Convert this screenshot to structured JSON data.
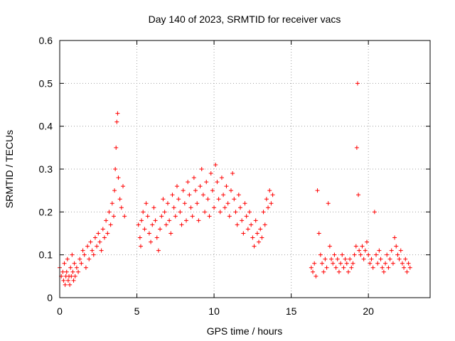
{
  "chart_data": {
    "type": "scatter",
    "title": "Day 140 of 2023, SRMTID for receiver vacs",
    "xlabel": "GPS time / hours",
    "ylabel": "SRMTID / TECUs",
    "xlim": [
      0,
      24
    ],
    "ylim": [
      0,
      0.6
    ],
    "xticks": [
      0,
      5,
      10,
      15,
      20
    ],
    "xtick_labels": [
      "0",
      "5",
      "10",
      "15",
      "20"
    ],
    "yticks": [
      0,
      0.1,
      0.2,
      0.3,
      0.4,
      0.5,
      0.6
    ],
    "ytick_labels": [
      "0",
      "0.1",
      "0.2",
      "0.3",
      "0.4",
      "0.5",
      "0.6"
    ],
    "grid": true,
    "marker": "+",
    "color": "#ff0000",
    "series": [
      {
        "name": "vacs",
        "x": [
          0.0,
          0.1,
          0.2,
          0.25,
          0.3,
          0.35,
          0.4,
          0.45,
          0.5,
          0.55,
          0.6,
          0.65,
          0.7,
          0.75,
          0.8,
          0.85,
          0.9,
          0.95,
          1.0,
          1.1,
          1.2,
          1.3,
          1.4,
          1.5,
          1.6,
          1.7,
          1.8,
          1.9,
          2.0,
          2.1,
          2.2,
          2.3,
          2.4,
          2.5,
          2.6,
          2.7,
          2.8,
          2.9,
          3.0,
          3.1,
          3.2,
          3.3,
          3.4,
          3.5,
          3.55,
          3.6,
          3.65,
          3.7,
          3.75,
          3.8,
          3.9,
          4.0,
          4.1,
          4.2,
          5.1,
          5.2,
          5.25,
          5.3,
          5.4,
          5.5,
          5.6,
          5.7,
          5.8,
          5.9,
          6.0,
          6.1,
          6.2,
          6.3,
          6.4,
          6.5,
          6.6,
          6.7,
          6.8,
          6.9,
          7.0,
          7.1,
          7.2,
          7.3,
          7.4,
          7.5,
          7.6,
          7.7,
          7.8,
          7.9,
          8.0,
          8.1,
          8.2,
          8.3,
          8.4,
          8.5,
          8.6,
          8.7,
          8.8,
          8.9,
          9.0,
          9.1,
          9.2,
          9.3,
          9.4,
          9.5,
          9.6,
          9.7,
          9.8,
          9.9,
          10.0,
          10.1,
          10.2,
          10.3,
          10.4,
          10.5,
          10.6,
          10.7,
          10.8,
          10.9,
          11.0,
          11.1,
          11.2,
          11.3,
          11.4,
          11.5,
          11.6,
          11.7,
          11.8,
          11.9,
          12.0,
          12.1,
          12.2,
          12.3,
          12.4,
          12.5,
          12.6,
          12.7,
          12.8,
          12.9,
          13.0,
          13.1,
          13.2,
          13.3,
          13.4,
          13.5,
          13.6,
          13.7,
          13.8,
          16.3,
          16.4,
          16.5,
          16.6,
          16.7,
          16.8,
          16.9,
          17.0,
          17.1,
          17.2,
          17.3,
          17.4,
          17.5,
          17.6,
          17.7,
          17.8,
          17.9,
          18.0,
          18.1,
          18.2,
          18.3,
          18.4,
          18.5,
          18.6,
          18.7,
          18.8,
          18.9,
          19.0,
          19.1,
          19.2,
          19.25,
          19.3,
          19.35,
          19.4,
          19.5,
          19.6,
          19.7,
          19.8,
          19.9,
          20.0,
          20.1,
          20.2,
          20.3,
          20.4,
          20.5,
          20.6,
          20.7,
          20.8,
          20.9,
          21.0,
          21.1,
          21.2,
          21.3,
          21.4,
          21.5,
          21.6,
          21.7,
          21.8,
          21.9,
          22.0,
          22.1,
          22.2,
          22.3,
          22.4,
          22.5,
          22.6,
          22.7
        ],
        "y": [
          0.07,
          0.05,
          0.06,
          0.04,
          0.08,
          0.03,
          0.05,
          0.06,
          0.09,
          0.04,
          0.05,
          0.03,
          0.07,
          0.05,
          0.1,
          0.06,
          0.04,
          0.08,
          0.05,
          0.07,
          0.06,
          0.09,
          0.08,
          0.11,
          0.1,
          0.07,
          0.12,
          0.09,
          0.13,
          0.11,
          0.1,
          0.14,
          0.12,
          0.15,
          0.13,
          0.11,
          0.16,
          0.14,
          0.18,
          0.15,
          0.2,
          0.17,
          0.22,
          0.19,
          0.25,
          0.3,
          0.35,
          0.41,
          0.43,
          0.28,
          0.23,
          0.21,
          0.26,
          0.19,
          0.17,
          0.14,
          0.12,
          0.18,
          0.2,
          0.16,
          0.22,
          0.19,
          0.15,
          0.13,
          0.17,
          0.21,
          0.18,
          0.14,
          0.11,
          0.16,
          0.19,
          0.23,
          0.2,
          0.17,
          0.22,
          0.18,
          0.15,
          0.24,
          0.21,
          0.19,
          0.26,
          0.23,
          0.2,
          0.17,
          0.25,
          0.22,
          0.18,
          0.27,
          0.24,
          0.21,
          0.19,
          0.28,
          0.25,
          0.22,
          0.18,
          0.26,
          0.3,
          0.24,
          0.2,
          0.27,
          0.23,
          0.19,
          0.29,
          0.25,
          0.21,
          0.31,
          0.27,
          0.23,
          0.2,
          0.28,
          0.24,
          0.21,
          0.26,
          0.22,
          0.19,
          0.25,
          0.29,
          0.23,
          0.2,
          0.17,
          0.24,
          0.21,
          0.18,
          0.15,
          0.22,
          0.19,
          0.16,
          0.2,
          0.17,
          0.14,
          0.12,
          0.18,
          0.15,
          0.13,
          0.16,
          0.14,
          0.2,
          0.17,
          0.23,
          0.21,
          0.25,
          0.22,
          0.24,
          0.07,
          0.06,
          0.08,
          0.05,
          0.25,
          0.15,
          0.1,
          0.08,
          0.06,
          0.09,
          0.07,
          0.22,
          0.12,
          0.09,
          0.08,
          0.1,
          0.07,
          0.09,
          0.06,
          0.08,
          0.1,
          0.07,
          0.09,
          0.08,
          0.06,
          0.09,
          0.07,
          0.08,
          0.1,
          0.12,
          0.35,
          0.5,
          0.24,
          0.11,
          0.1,
          0.12,
          0.09,
          0.11,
          0.13,
          0.1,
          0.08,
          0.09,
          0.07,
          0.2,
          0.1,
          0.08,
          0.11,
          0.09,
          0.07,
          0.06,
          0.08,
          0.1,
          0.07,
          0.09,
          0.11,
          0.08,
          0.14,
          0.12,
          0.1,
          0.09,
          0.11,
          0.08,
          0.07,
          0.09,
          0.06,
          0.08,
          0.07
        ]
      }
    ]
  }
}
